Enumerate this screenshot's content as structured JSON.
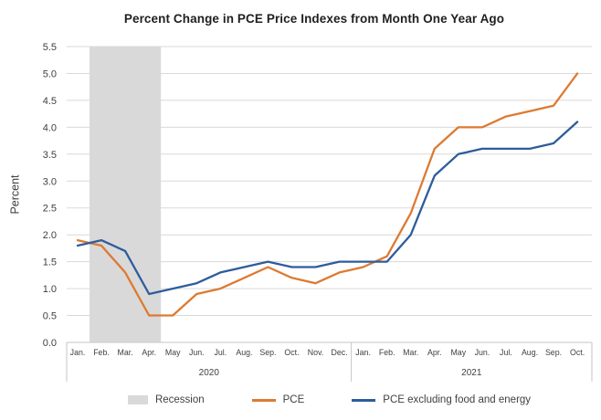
{
  "chart_data": {
    "type": "line",
    "title": "Percent Change in PCE Price Indexes from Month One Year Ago",
    "ylabel": "Percent",
    "ylim": [
      0.0,
      5.5
    ],
    "ytick_step": 0.5,
    "grid": true,
    "gridline_color": "#D9D9D9",
    "axis_color": "#C6C6C6",
    "legend_position": "bottom",
    "x_groups": [
      {
        "year": "2020",
        "months": [
          "Jan.",
          "Feb.",
          "Mar.",
          "Apr.",
          "May",
          "Jun.",
          "Jul.",
          "Aug.",
          "Sep.",
          "Oct.",
          "Nov.",
          "Dec."
        ]
      },
      {
        "year": "2021",
        "months": [
          "Jan.",
          "Feb.",
          "Mar.",
          "Apr.",
          "May",
          "Jun.",
          "Jul.",
          "Aug.",
          "Sep.",
          "Oct."
        ]
      }
    ],
    "recession_band": {
      "label": "Recession",
      "color": "#D9D9D9",
      "from_index": 0.5,
      "to_index": 3.5
    },
    "series": [
      {
        "name": "PCE",
        "color": "#DD7A31",
        "values": [
          1.9,
          1.8,
          1.3,
          0.5,
          0.5,
          0.9,
          1.0,
          1.2,
          1.4,
          1.2,
          1.1,
          1.3,
          1.4,
          1.6,
          2.4,
          3.6,
          4.0,
          4.0,
          4.2,
          4.3,
          4.4,
          5.0
        ]
      },
      {
        "name": "PCE excluding food and energy",
        "color": "#2E5C9C",
        "values": [
          1.8,
          1.9,
          1.7,
          0.9,
          1.0,
          1.1,
          1.3,
          1.4,
          1.5,
          1.4,
          1.4,
          1.5,
          1.5,
          1.5,
          2.0,
          3.1,
          3.5,
          3.6,
          3.6,
          3.6,
          3.7,
          4.1
        ]
      }
    ]
  }
}
